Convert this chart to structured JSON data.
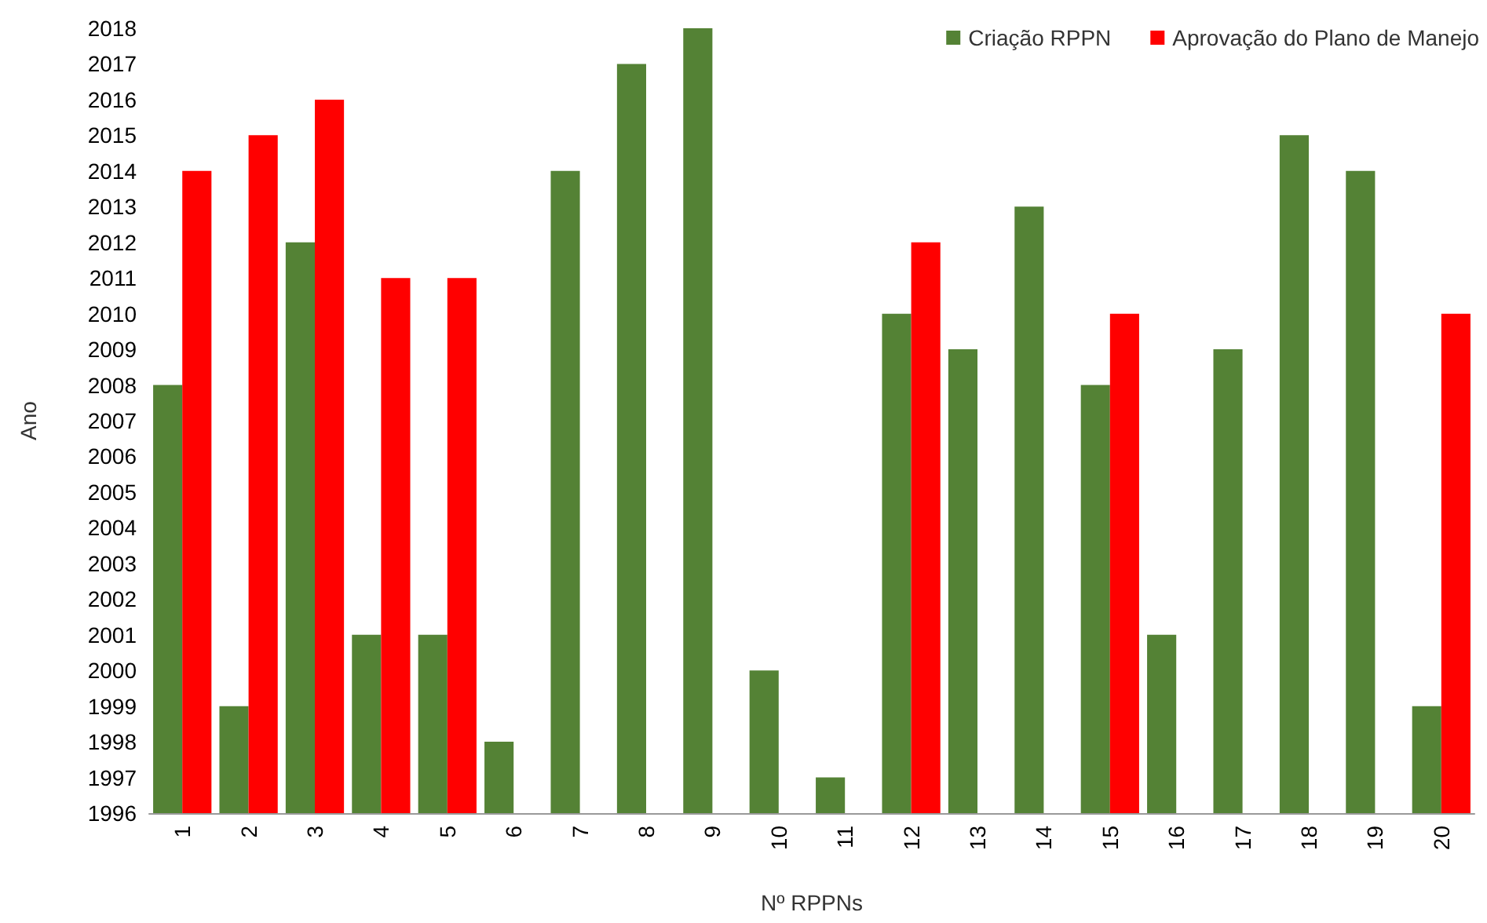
{
  "chart_data": {
    "type": "bar",
    "xlabel": "Nº RPPNs",
    "ylabel": "Ano",
    "categories": [
      "1",
      "2",
      "3",
      "4",
      "5",
      "6",
      "7",
      "8",
      "9",
      "10",
      "11",
      "12",
      "13",
      "14",
      "15",
      "16",
      "17",
      "18",
      "19",
      "20"
    ],
    "series": [
      {
        "name": "Criação RPPN",
        "color": "#548235",
        "values": [
          2008,
          1999,
          2012,
          2001,
          2001,
          1998,
          2014,
          2017,
          2018,
          2000,
          1997,
          2010,
          2009,
          2013,
          2008,
          2001,
          2009,
          2015,
          2014,
          1999
        ]
      },
      {
        "name": "Aprovação do Plano de Manejo",
        "color": "#ff0000",
        "values": [
          2014,
          2015,
          2016,
          2011,
          2011,
          null,
          null,
          null,
          null,
          null,
          null,
          2012,
          null,
          null,
          2010,
          null,
          null,
          null,
          null,
          2010
        ]
      }
    ],
    "ylim": [
      1996,
      2018
    ],
    "yticks": [
      1996,
      1997,
      1998,
      1999,
      2000,
      2001,
      2002,
      2003,
      2004,
      2005,
      2006,
      2007,
      2008,
      2009,
      2010,
      2011,
      2012,
      2013,
      2014,
      2015,
      2016,
      2017,
      2018
    ],
    "grid": false,
    "legend": "top right"
  }
}
